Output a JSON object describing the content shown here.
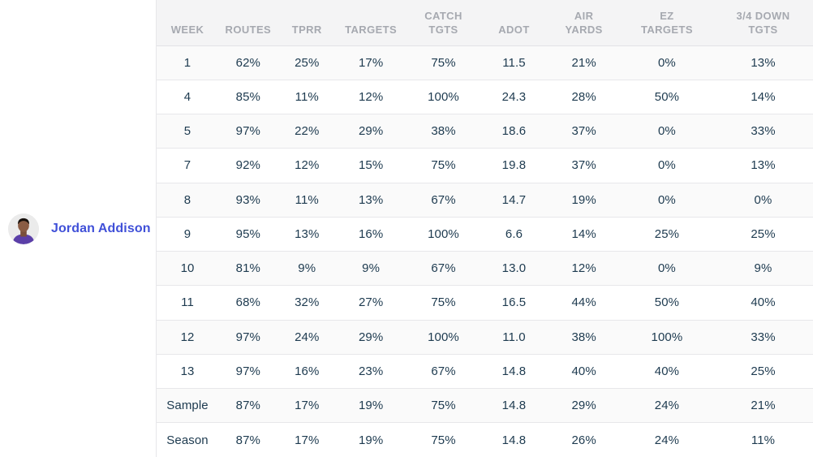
{
  "player": {
    "name": "Jordan Addison",
    "avatar": "player-headshot"
  },
  "table": {
    "columns": [
      "WEEK",
      "ROUTES",
      "TPRR",
      "TARGETS",
      "CATCH\nTGTS",
      "ADOT",
      "AIR\nYARDS",
      "EZ\nTARGETS",
      "3/4 DOWN\nTGTS"
    ],
    "rows": [
      [
        "1",
        "62%",
        "25%",
        "17%",
        "75%",
        "11.5",
        "21%",
        "0%",
        "13%"
      ],
      [
        "4",
        "85%",
        "11%",
        "12%",
        "100%",
        "24.3",
        "28%",
        "50%",
        "14%"
      ],
      [
        "5",
        "97%",
        "22%",
        "29%",
        "38%",
        "18.6",
        "37%",
        "0%",
        "33%"
      ],
      [
        "7",
        "92%",
        "12%",
        "15%",
        "75%",
        "19.8",
        "37%",
        "0%",
        "13%"
      ],
      [
        "8",
        "93%",
        "11%",
        "13%",
        "67%",
        "14.7",
        "19%",
        "0%",
        "0%"
      ],
      [
        "9",
        "95%",
        "13%",
        "16%",
        "100%",
        "6.6",
        "14%",
        "25%",
        "25%"
      ],
      [
        "10",
        "81%",
        "9%",
        "9%",
        "67%",
        "13.0",
        "12%",
        "0%",
        "9%"
      ],
      [
        "11",
        "68%",
        "32%",
        "27%",
        "75%",
        "16.5",
        "44%",
        "50%",
        "40%"
      ],
      [
        "12",
        "97%",
        "24%",
        "29%",
        "100%",
        "11.0",
        "38%",
        "100%",
        "33%"
      ],
      [
        "13",
        "97%",
        "16%",
        "23%",
        "67%",
        "14.8",
        "40%",
        "40%",
        "25%"
      ],
      [
        "Sample",
        "87%",
        "17%",
        "19%",
        "75%",
        "14.8",
        "29%",
        "24%",
        "21%"
      ],
      [
        "Season",
        "87%",
        "17%",
        "19%",
        "75%",
        "14.8",
        "26%",
        "24%",
        "11%"
      ]
    ]
  },
  "colors": {
    "accent_link": "#4050d8",
    "header_text": "#a6a9b0",
    "cell_text": "#1d3a4f",
    "header_bg": "#f4f4f5",
    "row_stripe": "#fafafa",
    "border": "#e7e7ea",
    "avatar_bg": "#ebebeb",
    "jersey_purple": "#5b3fa8"
  }
}
